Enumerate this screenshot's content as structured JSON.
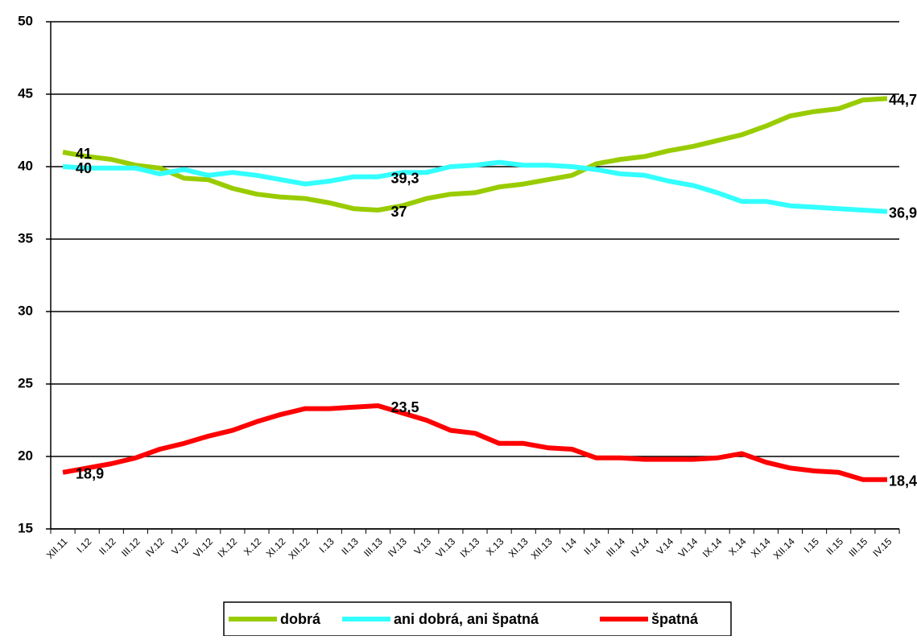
{
  "chart_data": {
    "type": "line",
    "categories": [
      "XII.11",
      "I.12",
      "II.12",
      "III.12",
      "IV.12",
      "V.12",
      "VI.12",
      "IX.12",
      "X.12",
      "XI.12",
      "XII.12",
      "I.13",
      "II.13",
      "III.13",
      "IV.13",
      "V.13",
      "VI.13",
      "IX.13",
      "X.13",
      "XI.13",
      "XII.13",
      "I.14",
      "II.14",
      "III.14",
      "IV.14",
      "V.14",
      "VI.14",
      "IX.14",
      "X.14",
      "XI.14",
      "XII.14",
      "I.15",
      "II.15",
      "III.15",
      "IV.15"
    ],
    "series": [
      {
        "name": "dobrá",
        "color": "#99cc00",
        "values": [
          41,
          40.7,
          40.5,
          40.1,
          39.9,
          39.2,
          39.1,
          38.5,
          38.1,
          37.9,
          37.8,
          37.5,
          37.1,
          37,
          37.3,
          37.8,
          38.1,
          38.2,
          38.6,
          38.8,
          39.1,
          39.4,
          40.2,
          40.5,
          40.7,
          41.1,
          41.4,
          41.8,
          42.2,
          42.8,
          43.5,
          43.8,
          44,
          44.6,
          44.7
        ],
        "value_labels": [
          "41",
          null,
          null,
          null,
          null,
          null,
          null,
          null,
          null,
          null,
          null,
          null,
          null,
          "37",
          null,
          null,
          null,
          null,
          null,
          null,
          null,
          null,
          null,
          null,
          null,
          null,
          null,
          null,
          null,
          null,
          null,
          null,
          null,
          null,
          "44,7"
        ]
      },
      {
        "name": "ani dobrá, ani špatná",
        "color": "#33ffff",
        "values": [
          40,
          39.9,
          39.9,
          39.9,
          39.5,
          39.8,
          39.4,
          39.6,
          39.4,
          39.1,
          38.8,
          39,
          39.3,
          39.3,
          39.6,
          39.6,
          40,
          40.1,
          40.3,
          40.1,
          40.1,
          40,
          39.8,
          39.5,
          39.4,
          39,
          38.7,
          38.2,
          37.6,
          37.6,
          37.3,
          37.2,
          37.1,
          37,
          36.9
        ],
        "value_labels": [
          "40",
          null,
          null,
          null,
          null,
          null,
          null,
          null,
          null,
          null,
          null,
          null,
          null,
          "39,3",
          null,
          null,
          null,
          null,
          null,
          null,
          null,
          null,
          null,
          null,
          null,
          null,
          null,
          null,
          null,
          null,
          null,
          null,
          null,
          null,
          "36,9"
        ]
      },
      {
        "name": "špatná",
        "color": "#ff0000",
        "values": [
          18.9,
          19.2,
          19.5,
          19.9,
          20.5,
          20.9,
          21.4,
          21.8,
          22.4,
          22.9,
          23.3,
          23.3,
          23.4,
          23.5,
          23,
          22.5,
          21.8,
          21.6,
          20.9,
          20.9,
          20.6,
          20.5,
          19.9,
          19.9,
          19.8,
          19.8,
          19.8,
          19.9,
          20.2,
          19.6,
          19.2,
          19,
          18.9,
          18.4,
          18.4
        ],
        "value_labels": [
          "18,9",
          null,
          null,
          null,
          null,
          null,
          null,
          null,
          null,
          null,
          null,
          null,
          null,
          "23,5",
          null,
          null,
          null,
          null,
          null,
          null,
          null,
          null,
          null,
          null,
          null,
          null,
          null,
          null,
          null,
          null,
          null,
          null,
          null,
          null,
          "18,4"
        ]
      }
    ],
    "ylim": [
      15,
      50
    ],
    "yticks": [
      15,
      20,
      25,
      30,
      35,
      40,
      45,
      50
    ],
    "grid": true,
    "legend": "bottom"
  }
}
